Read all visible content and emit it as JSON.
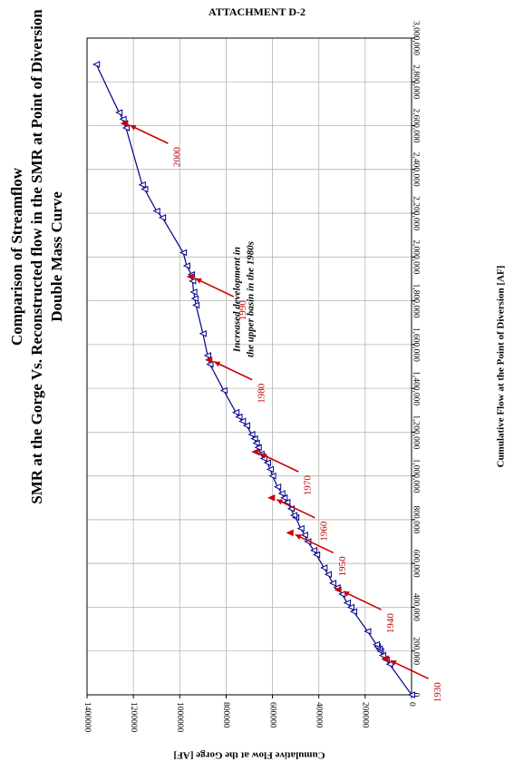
{
  "header": {
    "attachment": "ATTACHMENT D-2"
  },
  "chart_data": {
    "type": "scatter",
    "title_lines": [
      "Comparison of Streamflow",
      "SMR at the Gorge Vs. Reconstructed flow in the SMR at Point of Diversion",
      "Double Mass Curve"
    ],
    "xlabel": "Cumulative Flow at the Point of Diversion [AF]",
    "ylabel": "Cumulative Flow at the Gorge [AF]",
    "xlim": [
      0,
      3000000
    ],
    "ylim": [
      0,
      1400000
    ],
    "x_ticks": [
      "0",
      "200,000",
      "400,000",
      "600,000",
      "800,000",
      "1,000,000",
      "1,200,000",
      "1,400,000",
      "1,600,000",
      "1,800,000",
      "2,000,000",
      "2,200,000",
      "2,400,000",
      "2,600,000",
      "2,800,000",
      "3,000,000"
    ],
    "y_ticks": [
      "0",
      "200000",
      "400000",
      "600000",
      "800000",
      "1000000",
      "1200000",
      "1400000"
    ],
    "x_tick_values": [
      0,
      200000,
      400000,
      600000,
      800000,
      1000000,
      1200000,
      1400000,
      1600000,
      1800000,
      2000000,
      2200000,
      2400000,
      2600000,
      2800000,
      3000000
    ],
    "y_tick_values": [
      0,
      200000,
      400000,
      600000,
      800000,
      1000000,
      1200000,
      1400000
    ],
    "grid": true,
    "series": [
      {
        "color": "#00008b",
        "marker": "open-triangle",
        "x": [
          0,
          140000,
          160000,
          180000,
          200000,
          210000,
          220000,
          230000,
          290000,
          380000,
          400000,
          420000,
          460000,
          490000,
          510000,
          550000,
          580000,
          640000,
          660000,
          700000,
          730000,
          760000,
          810000,
          820000,
          850000,
          880000,
          900000,
          920000,
          950000,
          1000000,
          1030000,
          1060000,
          1080000,
          1100000,
          1130000,
          1150000,
          1170000,
          1190000,
          1230000,
          1250000,
          1270000,
          1290000,
          1390000,
          1510000,
          1550000,
          1650000,
          1780000,
          1810000,
          1840000,
          1890000,
          1920000,
          1960000,
          2020000,
          2180000,
          2210000,
          2310000,
          2330000,
          2590000,
          2610000,
          2630000,
          2660000,
          2880000
        ],
        "y": [
          0,
          95000,
          110000,
          125000,
          135000,
          140000,
          148000,
          152000,
          190000,
          250000,
          262000,
          278000,
          300000,
          322000,
          340000,
          360000,
          378000,
          410000,
          422000,
          448000,
          462000,
          478000,
          500000,
          508000,
          520000,
          538000,
          550000,
          560000,
          578000,
          600000,
          610000,
          622000,
          638000,
          650000,
          662000,
          670000,
          678000,
          690000,
          712000,
          730000,
          745000,
          758000,
          810000,
          870000,
          880000,
          900000,
          930000,
          935000,
          940000,
          945000,
          950000,
          970000,
          985000,
          1075000,
          1100000,
          1152000,
          1162000,
          1232000,
          1240000,
          1245000,
          1262000,
          1360000
        ]
      }
    ],
    "highlighted_years": {
      "color": "#cc0000",
      "labels": [
        "1930",
        "1940",
        "1950",
        "1960",
        "1970",
        "1980",
        "1990",
        "2000"
      ],
      "x": [
        165000,
        480000,
        740000,
        900000,
        1110000,
        1530000,
        1910000,
        2610000
      ],
      "y": [
        115000,
        318000,
        525000,
        605000,
        675000,
        875000,
        955000,
        1238000
      ]
    },
    "annotation": [
      "Increased development in",
      "the upper basin in the 1980s"
    ]
  }
}
